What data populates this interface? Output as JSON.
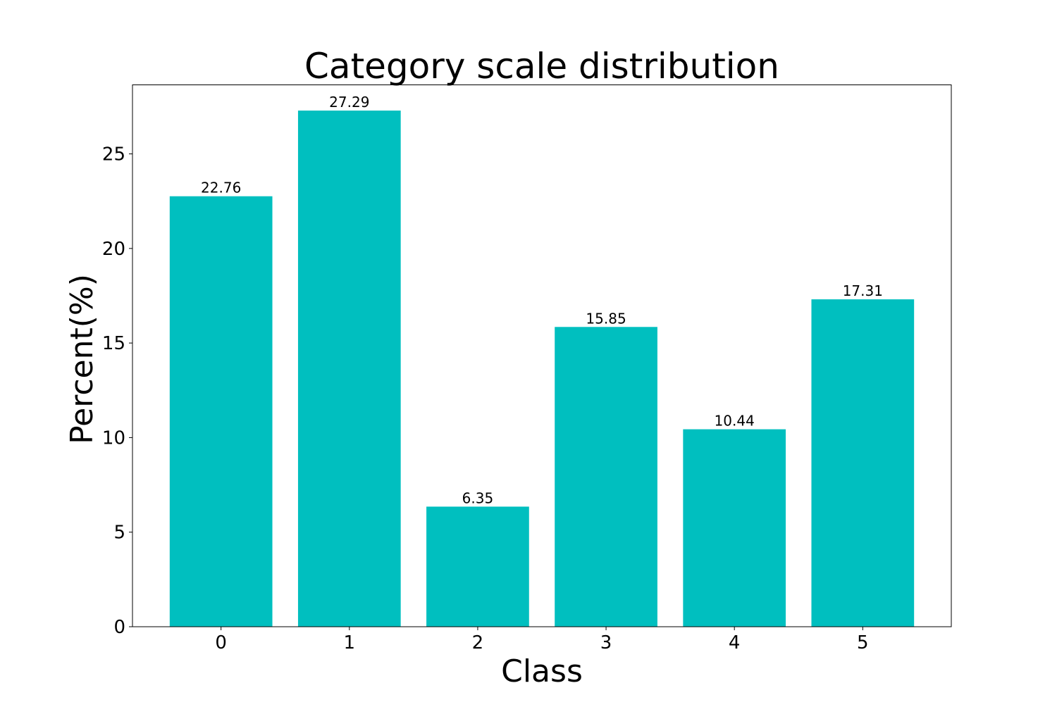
{
  "chart_data": {
    "type": "bar",
    "title": "Category scale distribution",
    "xlabel": "Class",
    "ylabel": "Percent(%)",
    "categories": [
      "0",
      "1",
      "2",
      "3",
      "4",
      "5"
    ],
    "values": [
      22.76,
      27.29,
      6.35,
      15.85,
      10.44,
      17.31
    ],
    "value_labels": [
      "22.76",
      "27.29",
      "6.35",
      "15.85",
      "10.44",
      "17.31"
    ],
    "ylim": [
      0,
      28.65
    ],
    "yticks": [
      0,
      5,
      10,
      15,
      20,
      25
    ],
    "ytick_labels": [
      "0",
      "5",
      "10",
      "15",
      "20",
      "25"
    ],
    "grid": false,
    "legend": "none",
    "bar_color": "#00BFBF"
  }
}
